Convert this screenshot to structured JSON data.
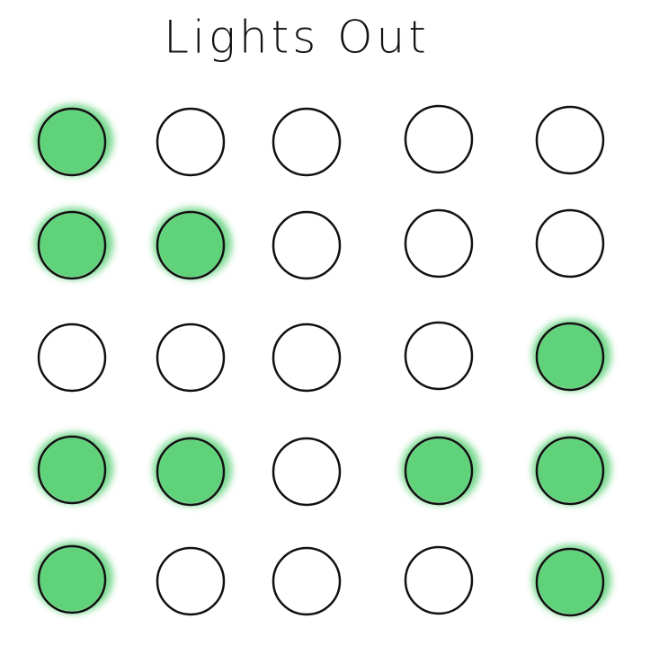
{
  "title": "Lights Out",
  "board": [
    [
      true,
      false,
      false,
      false,
      false
    ],
    [
      true,
      true,
      false,
      false,
      false
    ],
    [
      false,
      false,
      false,
      false,
      true
    ],
    [
      true,
      true,
      false,
      true,
      true
    ],
    [
      true,
      false,
      false,
      false,
      true
    ]
  ],
  "on_color": "#5fd27a"
}
